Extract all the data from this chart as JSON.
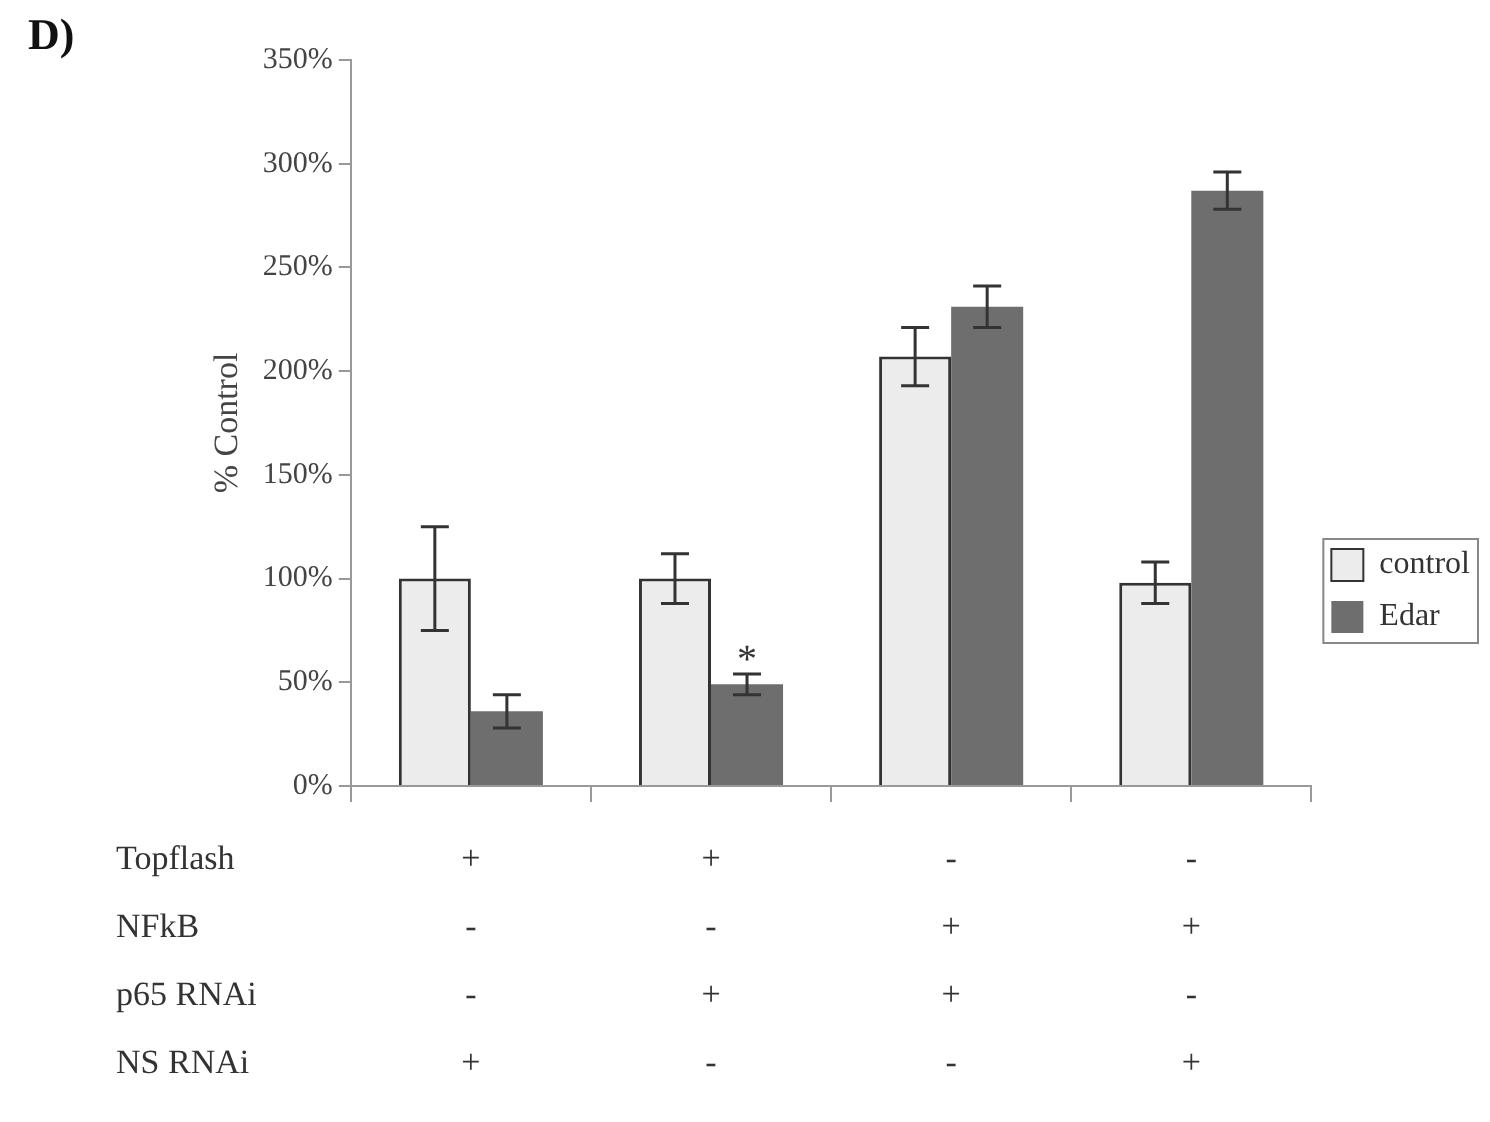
{
  "chart_data": {
    "type": "bar",
    "title": "D)",
    "ylabel": "% Control",
    "categories": [
      "+\n-\n-\n+",
      "+\n-\n+\n-",
      "-\n+\n+\n-",
      "-\n+\n-\n+"
    ],
    "series": [
      {
        "name": "control",
        "color": "#ececec",
        "values": [
          100,
          100,
          207,
          98
        ],
        "errors": [
          25,
          12,
          14,
          10
        ]
      },
      {
        "name": "Edar",
        "color": "#6e6e6e",
        "values": [
          36,
          49,
          231,
          287
        ],
        "errors": [
          8,
          5,
          10,
          9
        ]
      }
    ],
    "ylim": [
      0,
      350
    ],
    "yticks": [
      {
        "value": 0,
        "label": "0%"
      },
      {
        "value": 50,
        "label": "50%"
      },
      {
        "value": 100,
        "label": "100%"
      },
      {
        "value": 150,
        "label": "150%"
      },
      {
        "value": 200,
        "label": "200%"
      },
      {
        "value": 250,
        "label": "250%"
      },
      {
        "value": 300,
        "label": "300%"
      },
      {
        "value": 350,
        "label": "350%"
      }
    ],
    "legend": "right",
    "grid": false,
    "annotations": [
      "Topflash",
      "NFkB",
      "p65 RNAi",
      "NS RNAi",
      {
        "text": "*",
        "x": "+\n-\n+\n-",
        "y": 54
      }
    ]
  }
}
